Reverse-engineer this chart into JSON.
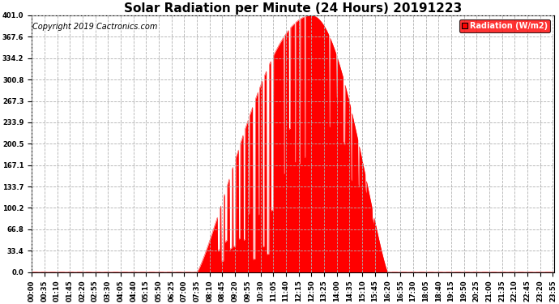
{
  "title": "Solar Radiation per Minute (24 Hours) 20191223",
  "copyright_text": "Copyright 2019 Cactronics.com",
  "legend_label": "Radiation (W/m2)",
  "yticks": [
    0.0,
    33.4,
    66.8,
    100.2,
    133.7,
    167.1,
    200.5,
    233.9,
    267.3,
    300.8,
    334.2,
    367.6,
    401.0
  ],
  "ymax": 401.0,
  "fill_color": "#ff0000",
  "line_color": "#ff0000",
  "dashed_line_color": "#ff0000",
  "legend_bg": "#ff0000",
  "legend_text_color": "#ffffff",
  "background_color": "#ffffff",
  "grid_color": "#b0b0b0",
  "title_fontsize": 11,
  "copyright_fontsize": 7,
  "axis_fontsize": 6,
  "legend_fontsize": 7,
  "sunrise": 455,
  "sunset": 980,
  "solar_noon": 770,
  "xtick_step": 35
}
